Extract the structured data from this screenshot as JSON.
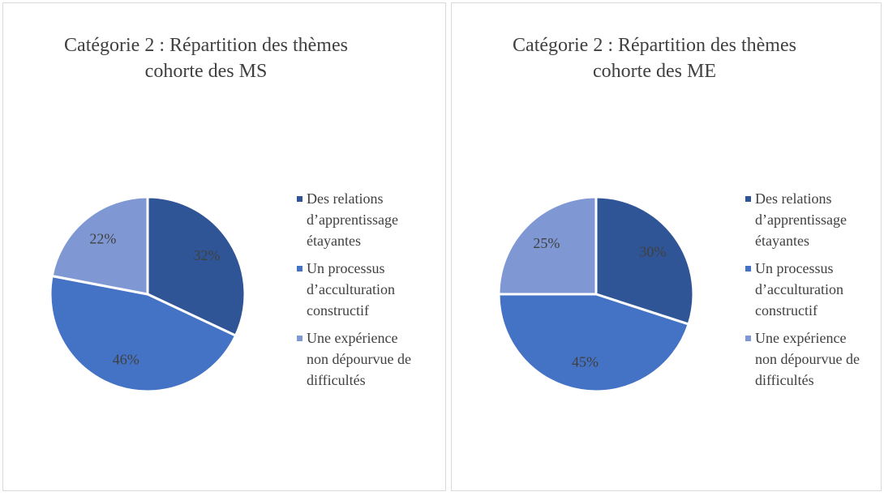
{
  "chart_data": [
    {
      "type": "pie",
      "title": "Catégorie 2 : Répartition des thèmes cohorte des MS",
      "categories": [
        "Des relations d’apprentissage étayantes",
        "Un processus d’acculturation constructif",
        "Une expérience non dépourvue de difficultés"
      ],
      "values": [
        32,
        46,
        22
      ],
      "value_labels": [
        "32%",
        "46%",
        "22%"
      ],
      "colors": [
        "#2f5597",
        "#4472c4",
        "#7f98d4"
      ]
    },
    {
      "type": "pie",
      "title": "Catégorie 2 : Répartition des thèmes cohorte des ME",
      "categories": [
        "Des relations d’apprentissage étayantes",
        "Un processus d’acculturation constructif",
        "Une expérience non dépourvue de difficultés"
      ],
      "values": [
        30,
        45,
        25
      ],
      "value_labels": [
        "30%",
        "45%",
        "25%"
      ],
      "colors": [
        "#2f5597",
        "#4472c4",
        "#7f98d4"
      ]
    }
  ]
}
